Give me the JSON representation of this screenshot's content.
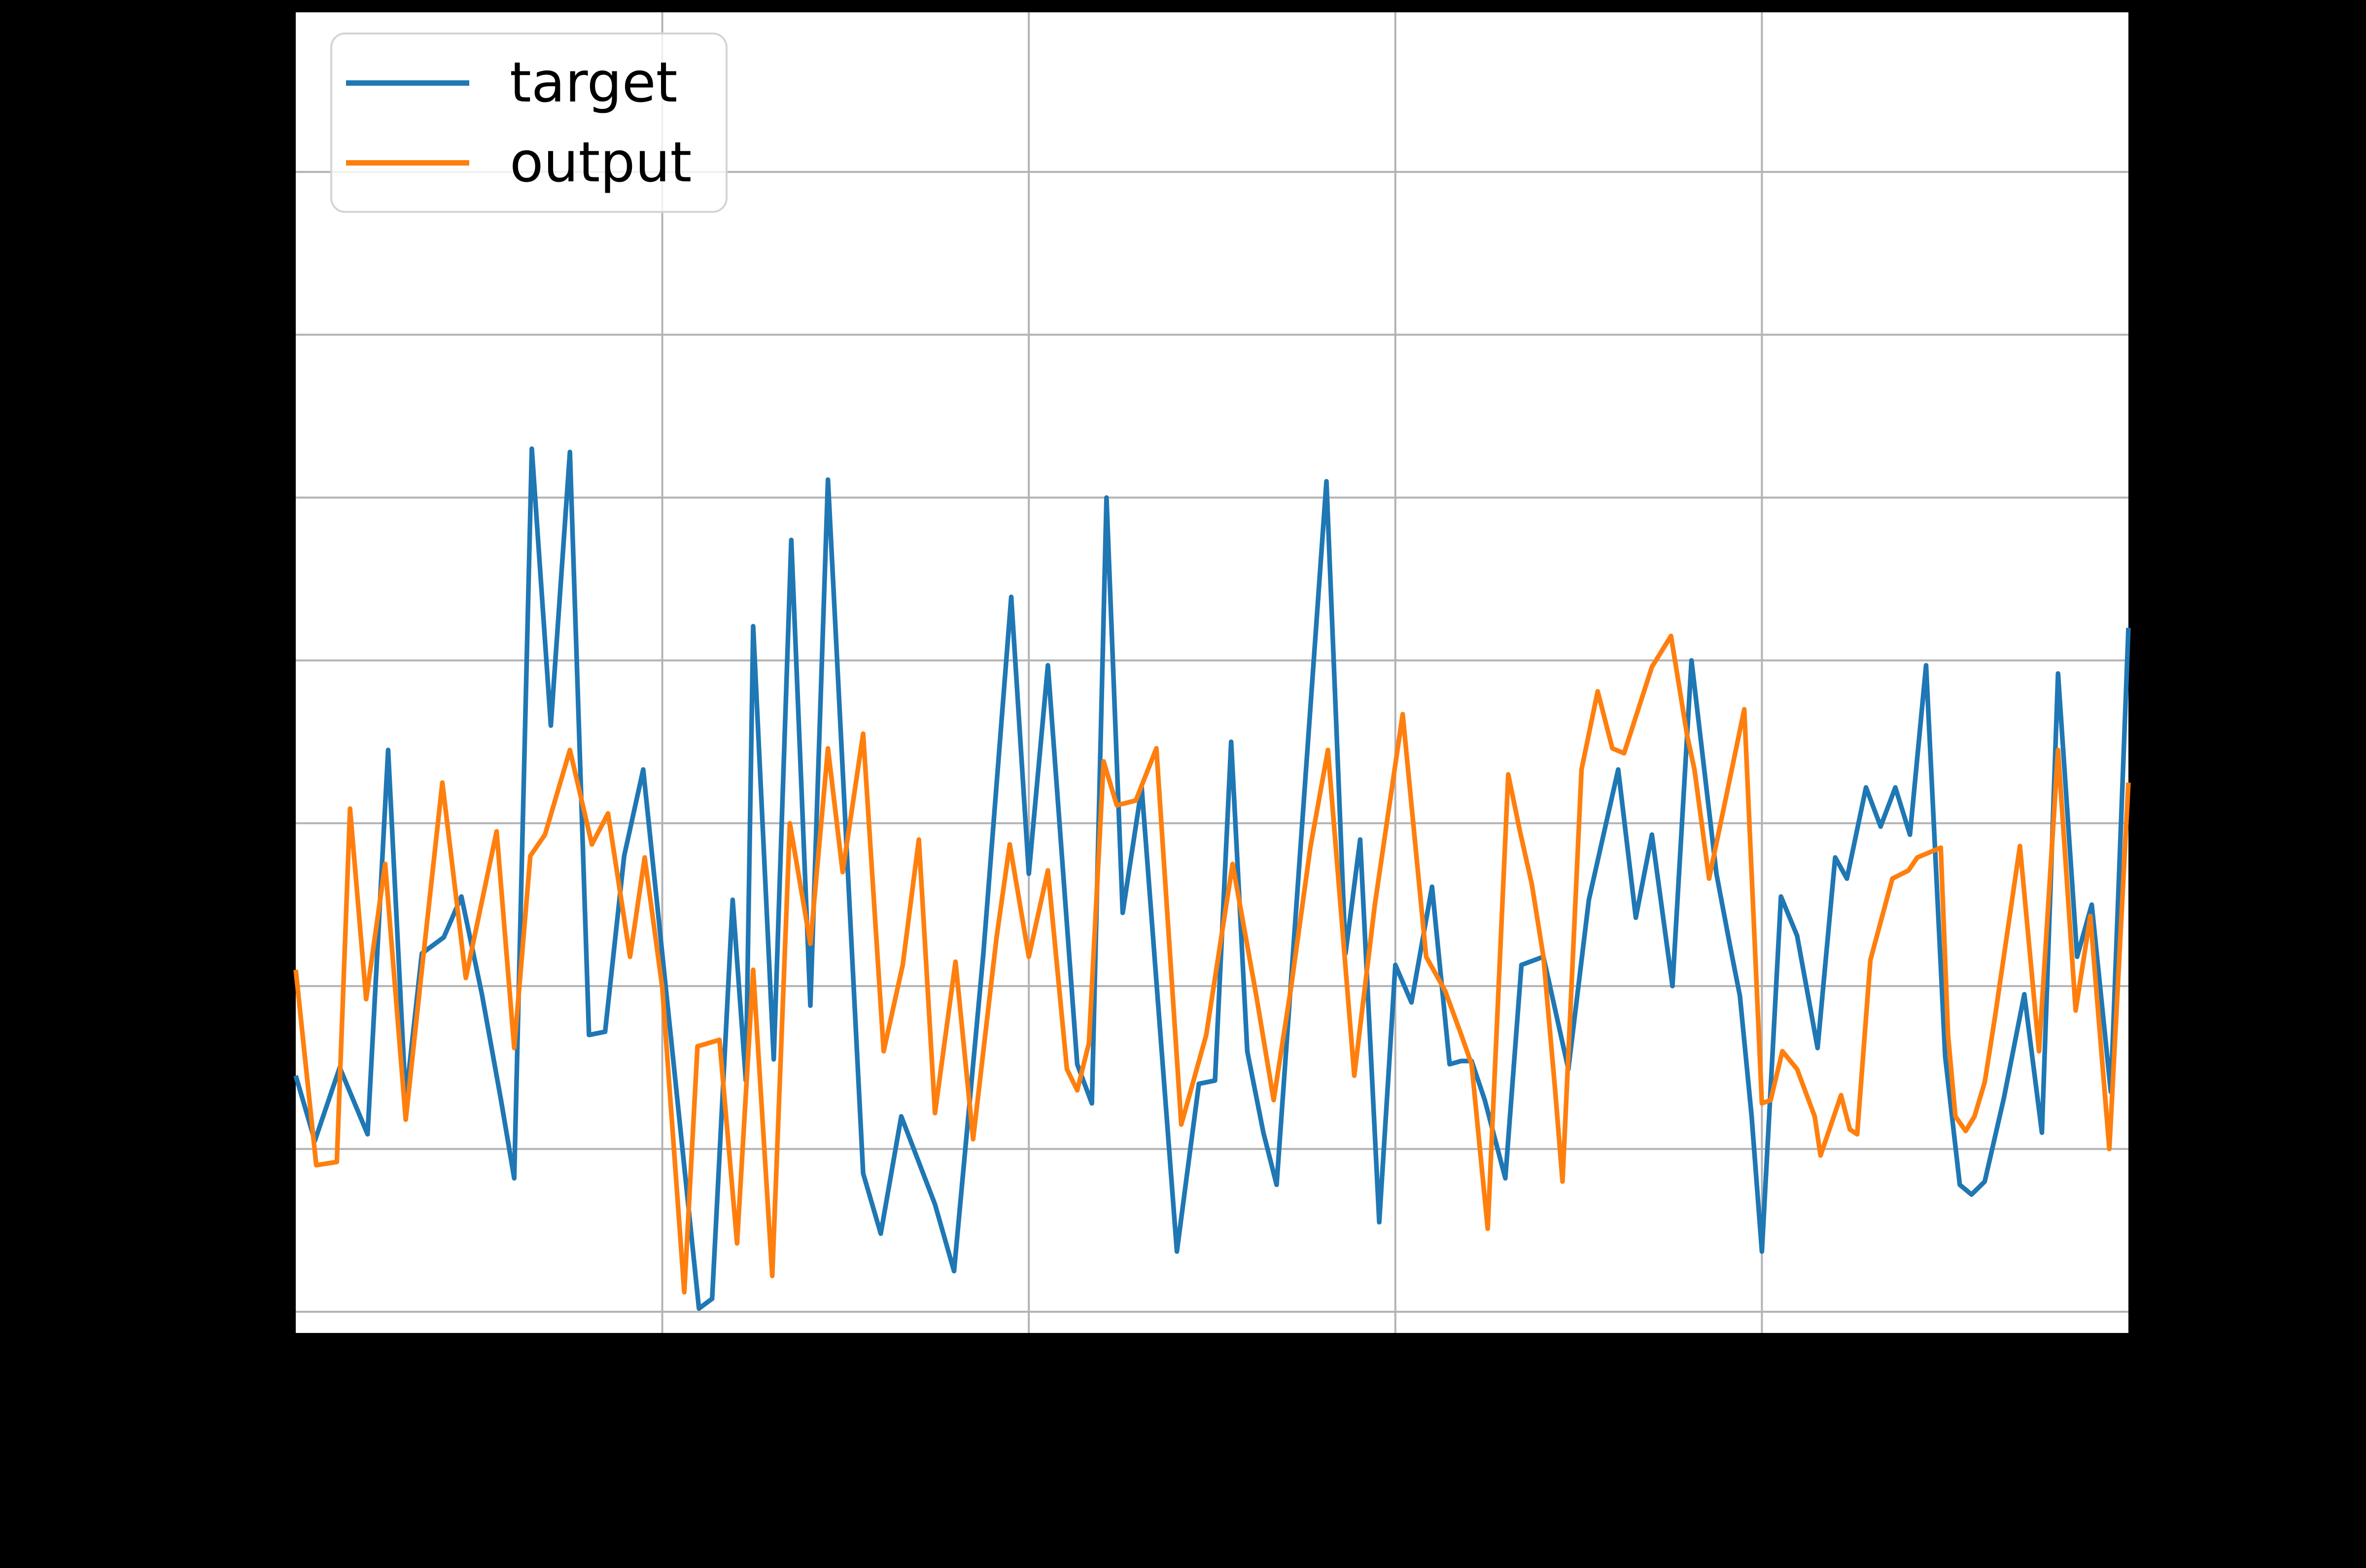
{
  "figure": {
    "background": "#000000",
    "plot_background": "#ffffff",
    "grid_color": "#b3b3b3"
  },
  "legend": {
    "items": [
      {
        "label": "target",
        "color": "#1f77b4"
      },
      {
        "label": "output",
        "color": "#ff7f0e"
      }
    ]
  },
  "chart_data": {
    "type": "line",
    "title": "",
    "xlabel": "",
    "ylabel": "",
    "legend_position": "upper left",
    "grid": true,
    "xlim": [
      0,
      125
    ],
    "ylim": [
      -0.13,
      7.98
    ],
    "x_gridlines": [
      25,
      50,
      75,
      100
    ],
    "y_gridlines": [
      0,
      1,
      2,
      3,
      4,
      5,
      6,
      7
    ],
    "series": [
      {
        "name": "target",
        "color": "#1f77b4",
        "x": [
          0,
          1.3,
          3.0,
          4.9,
          6.3,
          7.5,
          8.6,
          10.1,
          11.3,
          12.7,
          14.0,
          14.9,
          16.1,
          17.4,
          18.7,
          20.0,
          21.1,
          22.4,
          23.7,
          27.5,
          28.4,
          29.8,
          30.7,
          31.2,
          32.6,
          33.8,
          35.1,
          36.3,
          38.7,
          39.9,
          41.3,
          43.6,
          44.9,
          46.9,
          48.8,
          50.0,
          51.3,
          53.3,
          54.3,
          55.3,
          56.4,
          57.7,
          60.1,
          61.6,
          62.7,
          63.8,
          64.9,
          66.0,
          66.9,
          70.3,
          71.6,
          72.6,
          73.9,
          75.0,
          76.1,
          77.5,
          78.7,
          79.5,
          80.2,
          81.1,
          82.5,
          83.6,
          85.1,
          86.8,
          88.2,
          90.2,
          91.4,
          92.5,
          93.9,
          95.2,
          96.9,
          97.8,
          98.5,
          99.3,
          100.0,
          101.3,
          102.4,
          103.8,
          105.0,
          105.8,
          107.1,
          108.1,
          109.1,
          110.1,
          111.2,
          112.5,
          113.5,
          114.3,
          115.2,
          116.5,
          117.9,
          119.1,
          120.2,
          121.5,
          122.5,
          123.8,
          125.0
        ],
        "y": [
          1.45,
          1.05,
          1.5,
          1.09,
          3.45,
          1.3,
          2.2,
          2.3,
          2.55,
          1.95,
          1.3,
          0.82,
          5.3,
          3.6,
          5.28,
          1.7,
          1.72,
          2.8,
          3.33,
          0.02,
          0.08,
          2.53,
          1.42,
          4.21,
          1.55,
          4.74,
          1.88,
          5.11,
          0.85,
          0.48,
          1.2,
          0.66,
          0.25,
          2.2,
          4.39,
          2.69,
          3.97,
          1.52,
          1.28,
          5.0,
          2.45,
          3.22,
          0.37,
          1.4,
          1.42,
          3.5,
          1.6,
          1.1,
          0.78,
          5.1,
          2.2,
          2.9,
          0.55,
          2.13,
          1.9,
          2.61,
          1.52,
          1.54,
          1.54,
          1.3,
          0.82,
          2.13,
          2.18,
          1.49,
          2.53,
          3.33,
          2.42,
          2.93,
          2.0,
          4.0,
          2.69,
          2.26,
          1.94,
          1.2,
          0.37,
          2.55,
          2.31,
          1.62,
          2.79,
          2.66,
          3.22,
          2.98,
          3.22,
          2.93,
          3.97,
          1.57,
          0.78,
          0.72,
          0.8,
          1.31,
          1.95,
          1.1,
          3.92,
          2.18,
          2.5,
          1.35,
          4.2
        ]
      },
      {
        "name": "output",
        "color": "#ff7f0e",
        "x": [
          0,
          1.4,
          2.8,
          3.7,
          4.8,
          6.1,
          7.5,
          8.6,
          10.0,
          11.6,
          13.7,
          14.9,
          16.0,
          17.0,
          18.7,
          20.2,
          21.3,
          22.8,
          23.8,
          25.0,
          26.5,
          27.4,
          28.9,
          30.1,
          31.2,
          32.5,
          33.7,
          35.1,
          36.3,
          37.3,
          38.7,
          40.1,
          41.4,
          42.5,
          43.6,
          45.0,
          46.2,
          47.8,
          48.7,
          50.0,
          51.3,
          52.6,
          53.3,
          54.1,
          55.1,
          56.0,
          57.3,
          58.7,
          60.4,
          62.1,
          63.9,
          65.5,
          66.7,
          67.9,
          69.2,
          70.4,
          72.2,
          73.6,
          75.5,
          77.1,
          78.4,
          79.5,
          80.2,
          81.3,
          82.7,
          83.5,
          84.3,
          85.1,
          85.9,
          86.4,
          87.7,
          88.8,
          89.8,
          90.6,
          92.5,
          93.8,
          94.9,
          95.4,
          96.4,
          98.8,
          100.0,
          100.6,
          101.4,
          102.4,
          103.6,
          104.0,
          105.4,
          106.0,
          106.5,
          107.4,
          108.9,
          110.0,
          110.6,
          112.2,
          112.7,
          113.2,
          113.9,
          114.5,
          115.2,
          115.9,
          117.6,
          118.9,
          120.2,
          121.4,
          122.4,
          123.7,
          125.0
        ],
        "y": [
          2.1,
          0.9,
          0.92,
          3.09,
          1.92,
          2.75,
          1.18,
          2.1,
          3.25,
          2.05,
          2.95,
          1.62,
          2.8,
          2.93,
          3.45,
          2.87,
          3.06,
          2.18,
          2.79,
          1.99,
          0.12,
          1.63,
          1.67,
          0.42,
          2.1,
          0.22,
          3.0,
          2.26,
          3.46,
          2.7,
          3.55,
          1.6,
          2.13,
          2.9,
          1.22,
          2.15,
          1.06,
          2.3,
          2.87,
          2.18,
          2.71,
          1.49,
          1.36,
          1.65,
          3.38,
          3.11,
          3.14,
          3.46,
          1.15,
          1.7,
          2.75,
          1.95,
          1.3,
          2.0,
          2.85,
          3.45,
          1.45,
          2.5,
          3.67,
          2.18,
          1.97,
          1.7,
          1.52,
          0.51,
          3.3,
          2.95,
          2.63,
          2.18,
          1.36,
          0.8,
          3.33,
          3.81,
          3.46,
          3.43,
          3.96,
          4.15,
          3.54,
          3.33,
          2.66,
          3.7,
          1.28,
          1.3,
          1.6,
          1.49,
          1.2,
          0.96,
          1.33,
          1.12,
          1.09,
          2.16,
          2.66,
          2.71,
          2.79,
          2.85,
          1.7,
          1.2,
          1.11,
          1.2,
          1.41,
          1.81,
          2.86,
          1.6,
          3.45,
          1.85,
          2.43,
          1.0,
          3.25
        ]
      }
    ]
  }
}
